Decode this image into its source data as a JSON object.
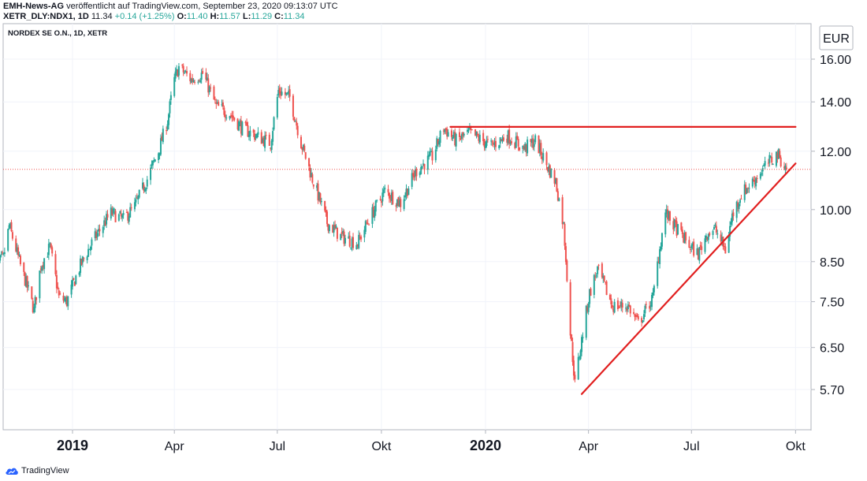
{
  "header": {
    "line1_author": "EMH-News-AG",
    "line1_text": "veröffentlicht auf TradingView.com, September 23, 2020 09:13:07 UTC",
    "symbol": "XETR_DLY:NDX1, 1D",
    "last": "11.34",
    "change": "+0.14 (+1.25%)",
    "o_label": "O:",
    "o_value": "11.40",
    "h_label": "H:",
    "h_value": "11.57",
    "l_label": "L:",
    "l_value": "11.29",
    "c_label": "C:",
    "c_value": "11.34"
  },
  "chart_title": "NORDEX SE O.N., 1D, XETR",
  "footer": {
    "brand": "TradingView"
  },
  "chart_data": {
    "type": "candlestick",
    "scale": "log",
    "currency_label": "EUR",
    "y_ticks": [
      "16.00",
      "14.00",
      "12.00",
      "10.00",
      "8.50",
      "7.50",
      "6.50",
      "5.70"
    ],
    "x_ticks": [
      {
        "label": "2019",
        "date": "2019-01-01",
        "bold": true
      },
      {
        "label": "Apr",
        "date": "2019-04-01",
        "bold": false
      },
      {
        "label": "Jul",
        "date": "2019-07-01",
        "bold": false
      },
      {
        "label": "Okt",
        "date": "2019-10-01",
        "bold": false
      },
      {
        "label": "2020",
        "date": "2020-01-01",
        "bold": true
      },
      {
        "label": "Apr",
        "date": "2020-04-01",
        "bold": false
      },
      {
        "label": "Jul",
        "date": "2020-07-01",
        "bold": false
      },
      {
        "label": "Okt",
        "date": "2020-10-01",
        "bold": false
      }
    ],
    "last_price": 11.34,
    "up_color": "#26a69a",
    "down_color": "#ef5350",
    "line_color": "#e11f1f",
    "path": [
      [
        "2018-10-22",
        8.3
      ],
      [
        "2018-11-01",
        8.6
      ],
      [
        "2018-11-06",
        9.5
      ],
      [
        "2018-11-16",
        8.4
      ],
      [
        "2018-11-28",
        7.3
      ],
      [
        "2018-12-04",
        8.4
      ],
      [
        "2018-12-12",
        8.9
      ],
      [
        "2018-12-20",
        7.6
      ],
      [
        "2018-12-27",
        7.5
      ],
      [
        "2019-01-08",
        8.4
      ],
      [
        "2019-01-18",
        9.0
      ],
      [
        "2019-02-04",
        9.9
      ],
      [
        "2019-02-15",
        9.7
      ],
      [
        "2019-02-25",
        10.1
      ],
      [
        "2019-03-08",
        11.0
      ],
      [
        "2019-03-18",
        12.0
      ],
      [
        "2019-03-26",
        13.2
      ],
      [
        "2019-04-01",
        15.0
      ],
      [
        "2019-04-05",
        15.6
      ],
      [
        "2019-04-16",
        15.0
      ],
      [
        "2019-04-26",
        15.3
      ],
      [
        "2019-05-08",
        13.8
      ],
      [
        "2019-05-20",
        13.5
      ],
      [
        "2019-05-31",
        12.9
      ],
      [
        "2019-06-12",
        12.6
      ],
      [
        "2019-06-25",
        12.3
      ],
      [
        "2019-07-02",
        14.5
      ],
      [
        "2019-07-12",
        14.2
      ],
      [
        "2019-07-22",
        12.3
      ],
      [
        "2019-08-01",
        11.0
      ],
      [
        "2019-08-14",
        9.6
      ],
      [
        "2019-08-26",
        9.2
      ],
      [
        "2019-09-10",
        9.0
      ],
      [
        "2019-09-20",
        9.7
      ],
      [
        "2019-10-04",
        10.6
      ],
      [
        "2019-10-18",
        10.2
      ],
      [
        "2019-11-01",
        11.3
      ],
      [
        "2019-11-15",
        11.8
      ],
      [
        "2019-11-25",
        12.9
      ],
      [
        "2019-12-06",
        12.4
      ],
      [
        "2019-12-18",
        12.7
      ],
      [
        "2020-01-06",
        12.2
      ],
      [
        "2020-01-20",
        12.6
      ],
      [
        "2020-02-04",
        12.1
      ],
      [
        "2020-02-14",
        12.4
      ],
      [
        "2020-02-24",
        11.5
      ],
      [
        "2020-03-03",
        10.9
      ],
      [
        "2020-03-10",
        9.5
      ],
      [
        "2020-03-16",
        6.8
      ],
      [
        "2020-03-20",
        5.8
      ],
      [
        "2020-03-25",
        6.5
      ],
      [
        "2020-04-02",
        7.7
      ],
      [
        "2020-04-09",
        8.3
      ],
      [
        "2020-04-22",
        7.4
      ],
      [
        "2020-05-06",
        7.4
      ],
      [
        "2020-05-15",
        7.0
      ],
      [
        "2020-05-28",
        7.6
      ],
      [
        "2020-06-08",
        9.9
      ],
      [
        "2020-06-16",
        9.5
      ],
      [
        "2020-06-30",
        8.9
      ],
      [
        "2020-07-07",
        8.7
      ],
      [
        "2020-07-15",
        9.3
      ],
      [
        "2020-07-22",
        9.4
      ],
      [
        "2020-07-31",
        8.8
      ],
      [
        "2020-08-06",
        9.8
      ],
      [
        "2020-08-14",
        10.5
      ],
      [
        "2020-08-24",
        10.9
      ],
      [
        "2020-09-03",
        11.4
      ],
      [
        "2020-09-15",
        11.9
      ],
      [
        "2020-09-23",
        11.34
      ]
    ],
    "trendlines": [
      {
        "from": [
          "2019-12-01",
          12.95
        ],
        "to": [
          "2020-10-01",
          12.95
        ]
      },
      {
        "from": [
          "2020-03-26",
          5.62
        ],
        "to": [
          "2020-10-01",
          11.55
        ]
      }
    ]
  }
}
